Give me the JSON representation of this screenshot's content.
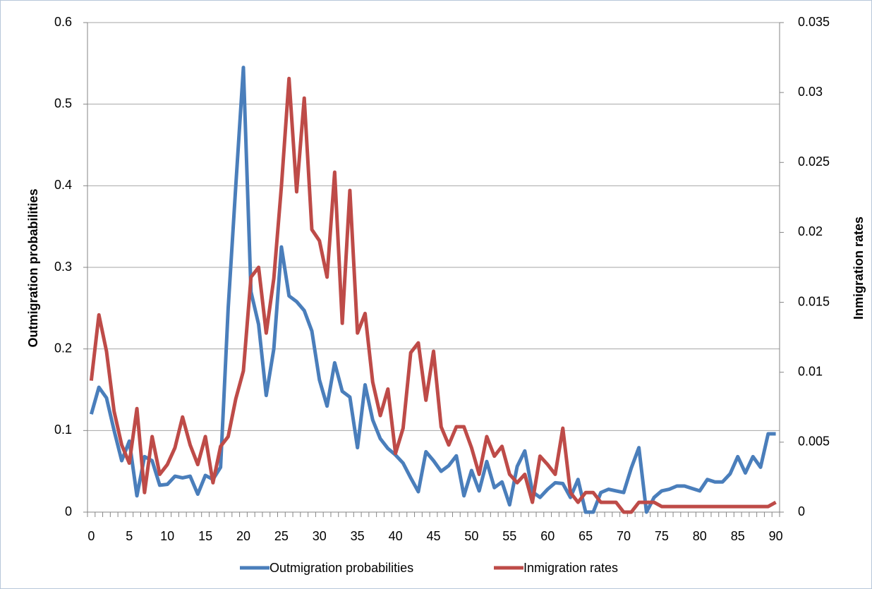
{
  "chart_data": {
    "type": "line",
    "categories": [
      0,
      null,
      null,
      null,
      null,
      5,
      null,
      null,
      null,
      null,
      10,
      null,
      null,
      null,
      null,
      15,
      null,
      null,
      null,
      null,
      20,
      null,
      null,
      null,
      null,
      25,
      null,
      null,
      null,
      null,
      30,
      null,
      null,
      null,
      null,
      35,
      null,
      null,
      null,
      null,
      40,
      null,
      null,
      null,
      null,
      45,
      null,
      null,
      null,
      null,
      50,
      null,
      null,
      null,
      null,
      55,
      null,
      null,
      null,
      null,
      60,
      null,
      null,
      null,
      null,
      65,
      null,
      null,
      null,
      null,
      70,
      null,
      null,
      null,
      null,
      75,
      null,
      null,
      null,
      null,
      80,
      null,
      null,
      null,
      null,
      85,
      null,
      null,
      null,
      null,
      90
    ],
    "ylabel": "Outmigration probabilities",
    "y2label": "Inmigration rates",
    "ylim": [
      0,
      0.6
    ],
    "yticks": [
      0,
      0.1,
      0.2,
      0.3,
      0.4,
      0.5,
      0.6
    ],
    "y2lim": [
      0,
      0.035
    ],
    "y2ticks": [
      0,
      0.005,
      0.01,
      0.015,
      0.02,
      0.025,
      0.03,
      0.035
    ],
    "grid": true,
    "legend": "bottom",
    "series": [
      {
        "name": "Outmigration probabilities",
        "color": "#4a7ebb",
        "axis": "y",
        "values": [
          0.12,
          0.153,
          0.14,
          0.1,
          0.063,
          0.087,
          0.02,
          0.068,
          0.063,
          0.033,
          0.034,
          0.044,
          0.042,
          0.044,
          0.022,
          0.045,
          0.04,
          0.055,
          0.25,
          0.4,
          0.545,
          0.27,
          0.23,
          0.143,
          0.2,
          0.325,
          0.265,
          0.258,
          0.247,
          0.222,
          0.162,
          0.13,
          0.183,
          0.148,
          0.141,
          0.079,
          0.156,
          0.113,
          0.09,
          0.078,
          0.07,
          0.06,
          0.042,
          0.025,
          0.074,
          0.063,
          0.05,
          0.057,
          0.069,
          0.02,
          0.051,
          0.026,
          0.062,
          0.03,
          0.037,
          0.009,
          0.056,
          0.075,
          0.025,
          0.018,
          0.028,
          0.036,
          0.035,
          0.018,
          0.04,
          0,
          0,
          0.024,
          0.028,
          0.026,
          0.024,
          0.054,
          0.079,
          0,
          0.018,
          0.026,
          0.028,
          0.032,
          0.032,
          0.029,
          0.026,
          0.04,
          0.037,
          0.037,
          0.047,
          0.068,
          0.048,
          0.068,
          0.055,
          0.096,
          0.096
        ]
      },
      {
        "name": "Inmigration rates",
        "color": "#be4b48",
        "axis": "y2",
        "values": [
          0.0094,
          0.0141,
          0.0115,
          0.0072,
          0.0048,
          0.0035,
          0.0074,
          0.0014,
          0.0054,
          0.0027,
          0.0034,
          0.0046,
          0.0068,
          0.0048,
          0.0034,
          0.0054,
          0.0021,
          0.0047,
          0.0054,
          0.0081,
          0.0101,
          0.0168,
          0.0175,
          0.0128,
          0.0167,
          0.0233,
          0.031,
          0.0229,
          0.0296,
          0.0202,
          0.0194,
          0.0168,
          0.0243,
          0.0135,
          0.023,
          0.0128,
          0.0142,
          0.0093,
          0.0069,
          0.0088,
          0.0042,
          0.006,
          0.0114,
          0.0121,
          0.008,
          0.0115,
          0.0061,
          0.0048,
          0.0061,
          0.0061,
          0.0046,
          0.0027,
          0.0054,
          0.004,
          0.0047,
          0.0027,
          0.0021,
          0.0027,
          0.0007,
          0.004,
          0.0034,
          0.0027,
          0.006,
          0.0014,
          0.0007,
          0.0014,
          0.0014,
          0.0007,
          0.0007,
          0.0007,
          0,
          0,
          0.0007,
          0.0007,
          0.0007,
          0.0004,
          0.0004,
          0.0004,
          0.0004,
          0.0004,
          0.0004,
          0.0004,
          0.0004,
          0.0004,
          0.0004,
          0.0004,
          0.0004,
          0.0004,
          0.0004,
          0.0004,
          0.0007
        ]
      }
    ]
  }
}
